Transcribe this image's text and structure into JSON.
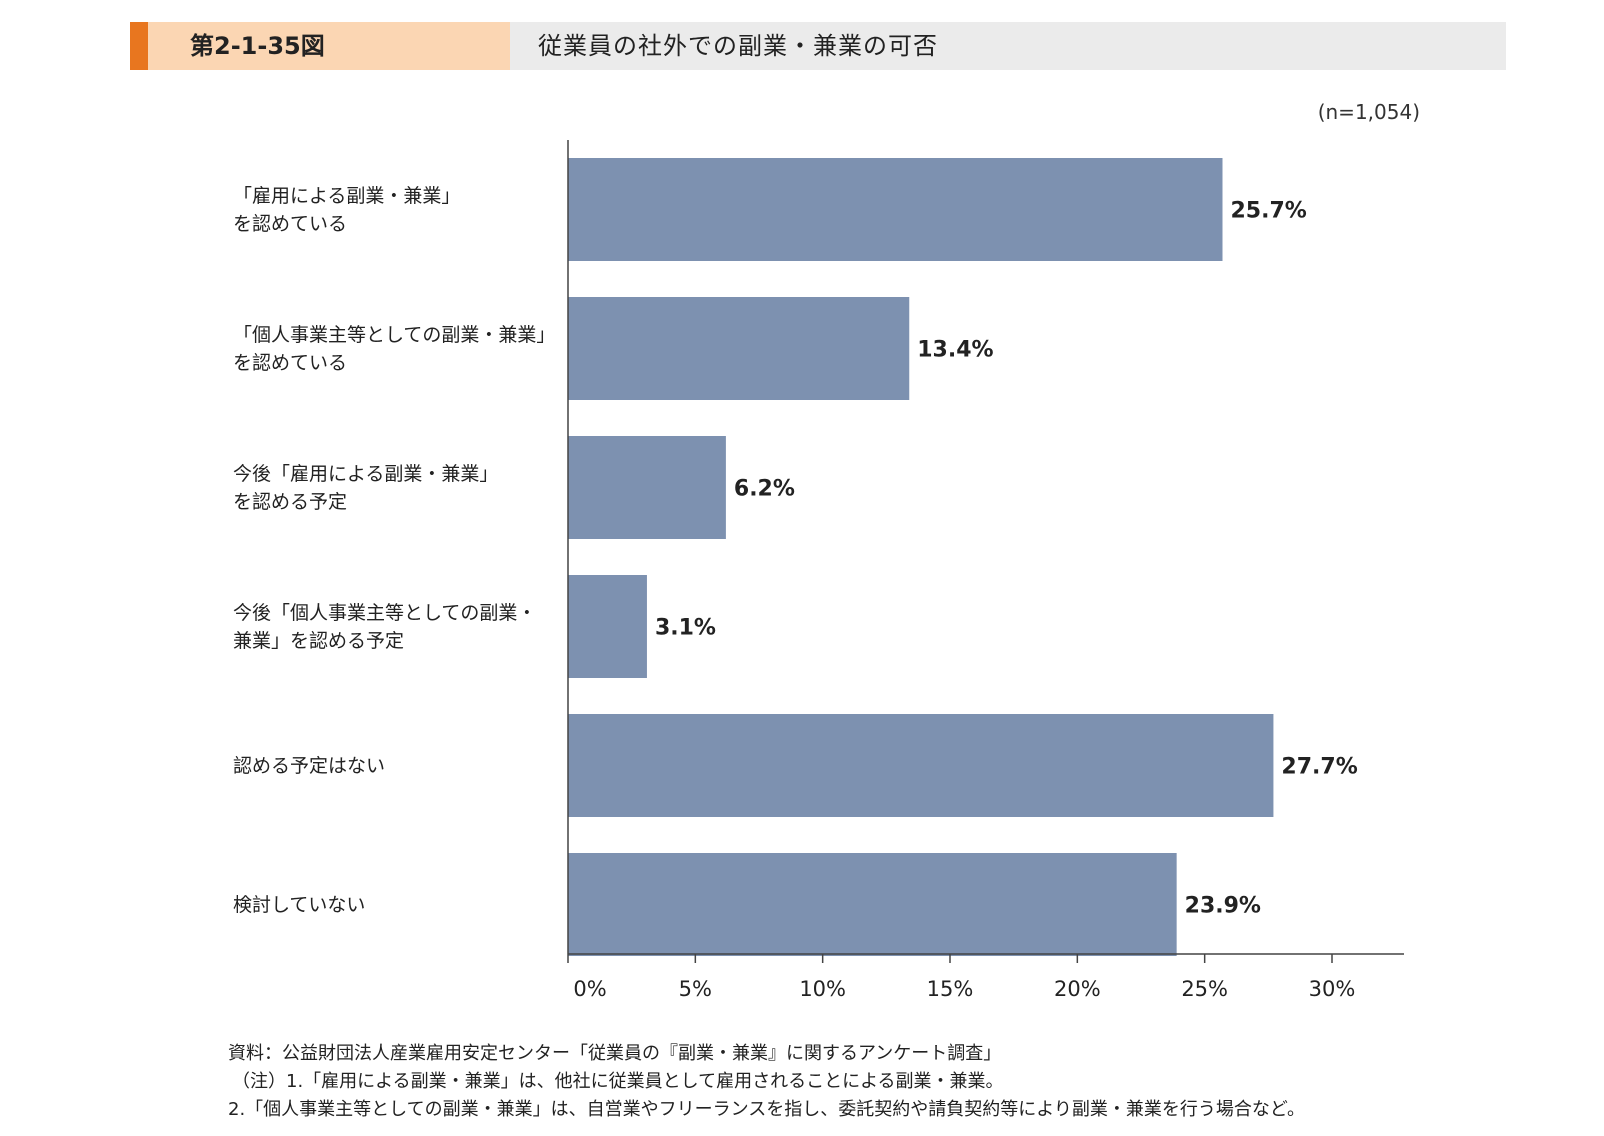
{
  "header": {
    "figure_label": "第2-1-35図",
    "title": "従業員の社外での副業・兼業の可否"
  },
  "sample_note": "(n=1,054)",
  "chart_data": {
    "type": "bar",
    "orientation": "horizontal",
    "title": "従業員の社外での副業・兼業の可否",
    "categories": [
      "「雇用による副業・兼業」\nを認めている",
      "「個人事業主等としての副業・兼業」\nを認めている",
      "今後「雇用による副業・兼業」\nを認める予定",
      "今後「個人事業主等としての副業・\n兼業」を認める予定",
      "認める予定はない",
      "検討していない"
    ],
    "values": [
      25.7,
      13.4,
      6.2,
      3.1,
      27.7,
      23.9
    ],
    "value_labels": [
      "25.7%",
      "13.4%",
      "6.2%",
      "3.1%",
      "27.7%",
      "23.9%"
    ],
    "xlim": [
      0,
      30
    ],
    "x_ticks": [
      0,
      5,
      10,
      15,
      20,
      25,
      30
    ],
    "x_tick_labels": [
      "0%",
      "5%",
      "10%",
      "15%",
      "20%",
      "25%",
      "30%"
    ],
    "bar_color": "#7d91b0",
    "grid": false
  },
  "footer": {
    "source": "資料：公益財団法人産業雇用安定センター「従業員の『副業・兼業』に関するアンケート調査」",
    "note1": "（注）1.「雇用による副業・兼業」は、他社に従業員として雇用されることによる副業・兼業。",
    "note2": "2.「個人事業主等としての副業・兼業」は、自営業やフリーランスを指し、委託契約や請負契約等により副業・兼業を行う場合など。"
  }
}
